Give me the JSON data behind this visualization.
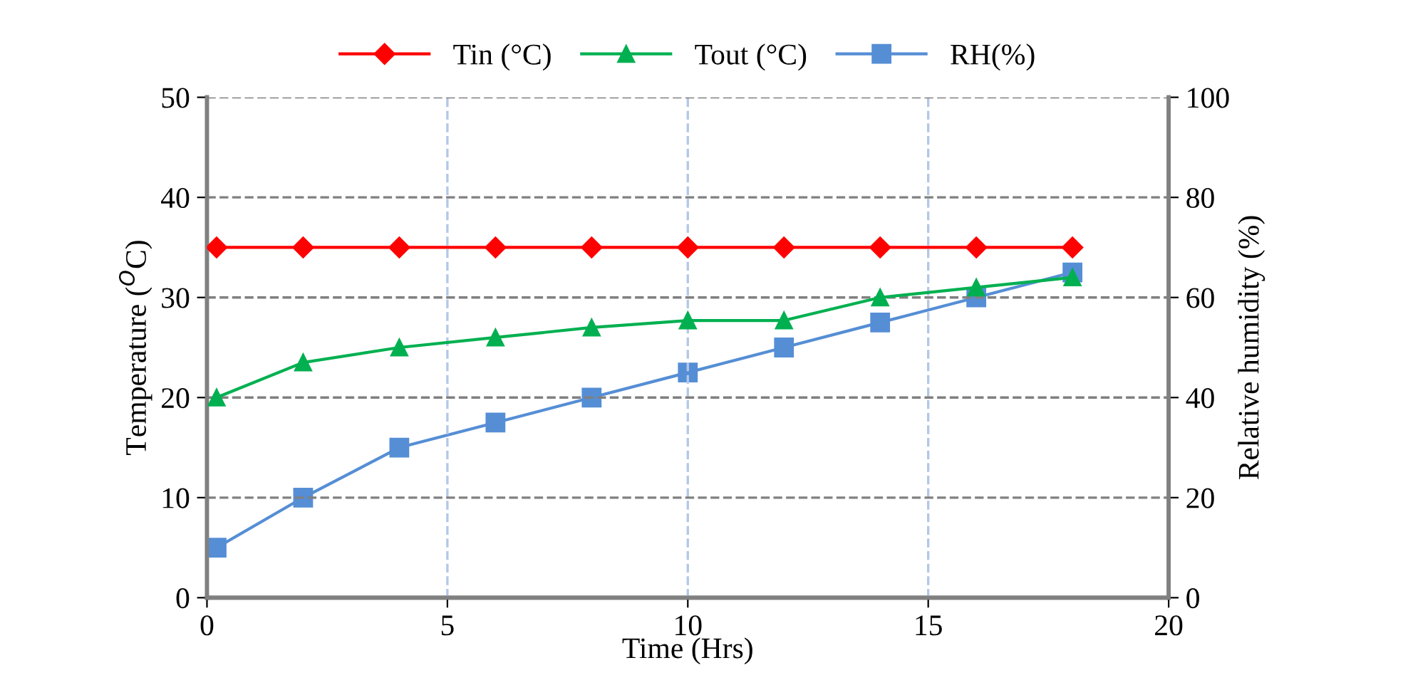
{
  "chart_data": {
    "type": "line",
    "xlabel": "Time (Hrs)",
    "ylabel": "Temperature ($^{O}$C)",
    "y2label": "Relative humidity (%)",
    "x": [
      0.2,
      2,
      4,
      6,
      8,
      10,
      12,
      14,
      16,
      18
    ],
    "series": [
      {
        "name": "Tin (°C)",
        "color": "#ff0000",
        "marker": "diamond",
        "values": [
          35,
          35,
          35,
          35,
          35,
          35,
          35,
          35,
          35,
          35
        ]
      },
      {
        "name": "Tout (°C)",
        "color": "#00b050",
        "marker": "triangle",
        "values": [
          20,
          23.5,
          25,
          26,
          27,
          27.7,
          27.7,
          30,
          31,
          32
        ]
      },
      {
        "name": "RH(%)",
        "color": "#558ed5",
        "marker": "square",
        "axis": "y2",
        "values": [
          10,
          20,
          30,
          35,
          40,
          45,
          50,
          55,
          60,
          65
        ]
      }
    ],
    "xlim": [
      0,
      20
    ],
    "xticks": [
      0,
      5,
      10,
      15,
      20
    ],
    "ylim": [
      0,
      50
    ],
    "yticks": [
      0,
      10,
      20,
      30,
      40,
      50
    ],
    "y2lim": [
      0,
      100
    ],
    "y2ticks": [
      0,
      20,
      40,
      60,
      80,
      100
    ],
    "grid": true,
    "legend": "top",
    "line_style": "solid"
  }
}
